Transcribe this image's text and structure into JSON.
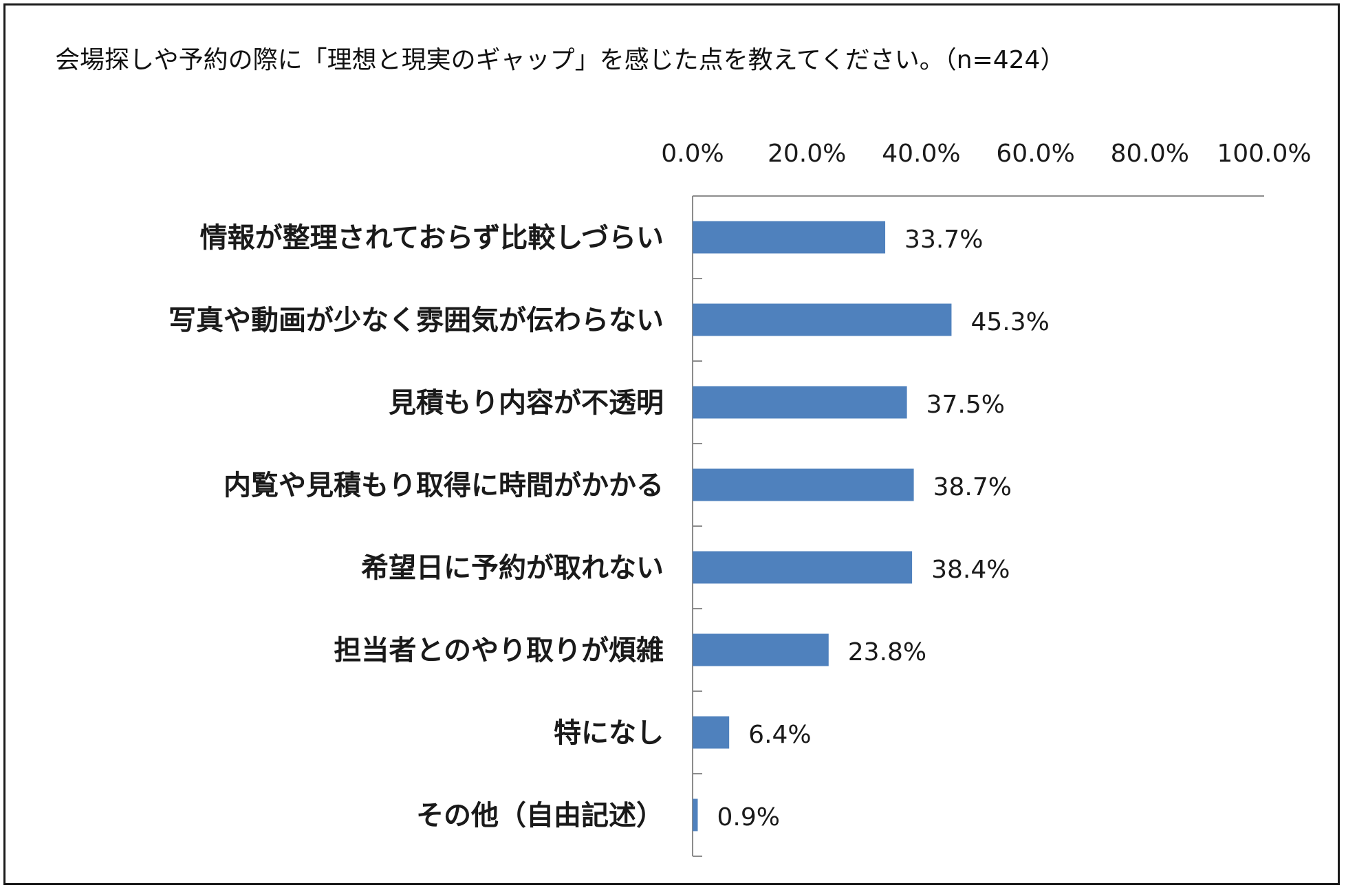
{
  "chart_data": {
    "type": "bar",
    "orientation": "horizontal",
    "title": "会場探しや予約の際に「理想と現実のギャップ」を感じた点を教えてください。（n=424）",
    "categories": [
      "情報が整理されておらず比較しづらい",
      "写真や動画が少なく雰囲気が伝わらない",
      "見積もり内容が不透明",
      "内覧や見積もり取得に時間がかかる",
      "希望日に予約が取れない",
      "担当者とのやり取りが煩雑",
      "特になし",
      "その他（自由記述）"
    ],
    "values": [
      33.7,
      45.3,
      37.5,
      38.7,
      38.4,
      23.8,
      6.4,
      0.9
    ],
    "value_labels": [
      "33.7%",
      "45.3%",
      "37.5%",
      "38.7%",
      "38.4%",
      "23.8%",
      "6.4%",
      "0.9%"
    ],
    "xlim": [
      0,
      100
    ],
    "x_ticks": [
      0,
      20,
      40,
      60,
      80,
      100
    ],
    "x_tick_labels": [
      "0.0%",
      "20.0%",
      "40.0%",
      "60.0%",
      "80.0%",
      "100.0%"
    ],
    "axis_position": "top",
    "grid": false,
    "bar_color": "#4f81bd"
  }
}
